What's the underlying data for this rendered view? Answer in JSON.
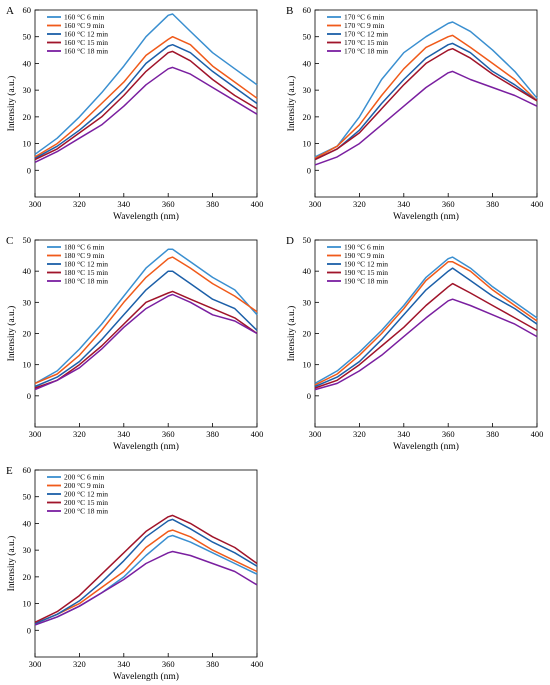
{
  "chart_data": [
    {
      "type": "line",
      "panel": "A",
      "xlabel": "Wavelength (nm)",
      "ylabel": "Intensity (a.u.)",
      "xlim": [
        300,
        400
      ],
      "ylim": [
        -10,
        60
      ],
      "xticks": [
        300,
        320,
        340,
        360,
        380,
        400
      ],
      "yticks": [
        0,
        10,
        20,
        30,
        40,
        50,
        60
      ],
      "grid": false,
      "legend_position": "top-left",
      "x": [
        300,
        310,
        320,
        330,
        340,
        350,
        360,
        362,
        370,
        380,
        390,
        400
      ],
      "series": [
        {
          "name": "160 °C  6 min",
          "color": "#3a8fd0",
          "values": [
            6,
            12,
            20,
            29,
            39,
            50,
            58,
            58.5,
            52,
            44,
            38,
            32
          ]
        },
        {
          "name": "160 °C  9 min",
          "color": "#f05a1a",
          "values": [
            5,
            10,
            17,
            25,
            33,
            43,
            49,
            50,
            47,
            39,
            33,
            27
          ]
        },
        {
          "name": "160 °C  12 min",
          "color": "#1c5fa8",
          "values": [
            4.5,
            9,
            15,
            22,
            30,
            40,
            46.5,
            47,
            44,
            37,
            31,
            25
          ]
        },
        {
          "name": "160 °C  15 min",
          "color": "#a0142a",
          "values": [
            4,
            8,
            14,
            20,
            28,
            37,
            44,
            44.5,
            41,
            34,
            28,
            23
          ]
        },
        {
          "name": "160 °C  18 min",
          "color": "#7a1fa0",
          "values": [
            3,
            7,
            12,
            17,
            24,
            32,
            38,
            38.5,
            36,
            31,
            26,
            21
          ]
        }
      ]
    },
    {
      "type": "line",
      "panel": "B",
      "xlabel": "Wavelength (nm)",
      "ylabel": "Intensity (a.u.)",
      "xlim": [
        300,
        400
      ],
      "ylim": [
        -10,
        60
      ],
      "xticks": [
        300,
        320,
        340,
        360,
        380,
        400
      ],
      "yticks": [
        0,
        10,
        20,
        30,
        40,
        50,
        60
      ],
      "grid": false,
      "legend_position": "top-left",
      "x": [
        300,
        310,
        320,
        330,
        340,
        350,
        360,
        362,
        370,
        380,
        390,
        400
      ],
      "series": [
        {
          "name": "170 °C  6 min",
          "color": "#3a8fd0",
          "values": [
            5,
            9,
            20,
            34,
            44,
            50,
            55,
            55.5,
            52,
            45,
            37,
            27
          ]
        },
        {
          "name": "170 °C  9 min",
          "color": "#f05a1a",
          "values": [
            4.5,
            9,
            17,
            28,
            38,
            46,
            50,
            50.5,
            46,
            40,
            34,
            26
          ]
        },
        {
          "name": "170 °C  12 min",
          "color": "#1c5fa8",
          "values": [
            4,
            8,
            15,
            25,
            34,
            42,
            47,
            47.5,
            44,
            37,
            32,
            26
          ]
        },
        {
          "name": "170 °C  15 min",
          "color": "#a0142a",
          "values": [
            4,
            8,
            14,
            23,
            32,
            40,
            45,
            45.5,
            42,
            36,
            31,
            26
          ]
        },
        {
          "name": "170 °C  18 min",
          "color": "#7a1fa0",
          "values": [
            2,
            5,
            10,
            17,
            24,
            31,
            36.5,
            37,
            34,
            31,
            28,
            24
          ]
        }
      ]
    },
    {
      "type": "line",
      "panel": "C",
      "xlabel": "Wavelength (nm)",
      "ylabel": "Intensity (a.u.)",
      "xlim": [
        300,
        400
      ],
      "ylim": [
        -10,
        50
      ],
      "xticks": [
        300,
        320,
        340,
        360,
        380,
        400
      ],
      "yticks": [
        0,
        10,
        20,
        30,
        40,
        50
      ],
      "grid": false,
      "legend_position": "top-left",
      "x": [
        300,
        310,
        320,
        330,
        340,
        350,
        360,
        362,
        370,
        380,
        390,
        400
      ],
      "series": [
        {
          "name": "180 °C  6 min",
          "color": "#3a8fd0",
          "values": [
            4,
            8,
            15,
            23,
            32,
            41,
            47,
            47,
            43,
            38,
            34,
            26
          ]
        },
        {
          "name": "180 °C  9 min",
          "color": "#f05a1a",
          "values": [
            4,
            7,
            13,
            21,
            30,
            38,
            44,
            44.5,
            41,
            36,
            32,
            27
          ]
        },
        {
          "name": "180 °C  12 min",
          "color": "#1c5fa8",
          "values": [
            3,
            6,
            11,
            18,
            26,
            34,
            40,
            40,
            36,
            31,
            28,
            21
          ]
        },
        {
          "name": "180 °C  15 min",
          "color": "#a0142a",
          "values": [
            2.5,
            5,
            10,
            16,
            23,
            30,
            33,
            33.5,
            31,
            28,
            25,
            20
          ]
        },
        {
          "name": "180 °C  18 min",
          "color": "#7a1fa0",
          "values": [
            2,
            5,
            9,
            15,
            22,
            28,
            32,
            32.5,
            30,
            26,
            24,
            20
          ]
        }
      ]
    },
    {
      "type": "line",
      "panel": "D",
      "xlabel": "Wavelength (nm)",
      "ylabel": "Intensity (a.u.)",
      "xlim": [
        300,
        400
      ],
      "ylim": [
        -10,
        50
      ],
      "xticks": [
        300,
        320,
        340,
        360,
        380,
        400
      ],
      "yticks": [
        0,
        10,
        20,
        30,
        40,
        50
      ],
      "grid": false,
      "legend_position": "top-left",
      "x": [
        300,
        310,
        320,
        330,
        340,
        350,
        360,
        362,
        370,
        380,
        390,
        400
      ],
      "series": [
        {
          "name": "190 °C  6 min",
          "color": "#3a8fd0",
          "values": [
            4,
            8,
            14,
            21,
            29,
            38,
            44,
            44.5,
            41,
            35,
            30,
            25
          ]
        },
        {
          "name": "190 °C  9 min",
          "color": "#f05a1a",
          "values": [
            3.5,
            7,
            13,
            20,
            28,
            37,
            43,
            43,
            40,
            34,
            29,
            24
          ]
        },
        {
          "name": "190 °C  12 min",
          "color": "#1c5fa8",
          "values": [
            3,
            6,
            11,
            18,
            26,
            34,
            40,
            41,
            37,
            32,
            28,
            23
          ]
        },
        {
          "name": "190 °C  15 min",
          "color": "#a0142a",
          "values": [
            2.5,
            5,
            10,
            16,
            22,
            29,
            35,
            36,
            33,
            29,
            25,
            21
          ]
        },
        {
          "name": "190 °C  18 min",
          "color": "#7a1fa0",
          "values": [
            2,
            4,
            8,
            13,
            19,
            25,
            30.5,
            31,
            29,
            26,
            23,
            19
          ]
        }
      ]
    },
    {
      "type": "line",
      "panel": "E",
      "xlabel": "Wavelength (nm)",
      "ylabel": "Intensity (a.u.)",
      "xlim": [
        300,
        400
      ],
      "ylim": [
        -10,
        60
      ],
      "xticks": [
        300,
        320,
        340,
        360,
        380,
        400
      ],
      "yticks": [
        0,
        10,
        20,
        30,
        40,
        50,
        60
      ],
      "grid": false,
      "legend_position": "top-left",
      "x": [
        300,
        310,
        320,
        330,
        340,
        350,
        360,
        362,
        370,
        380,
        390,
        400
      ],
      "series": [
        {
          "name": "200 °C  6 min",
          "color": "#3a8fd0",
          "values": [
            2,
            5,
            9,
            14,
            20,
            28,
            35,
            35.5,
            33,
            29,
            25,
            21
          ]
        },
        {
          "name": "200 °C  9 min",
          "color": "#f05a1a",
          "values": [
            2.5,
            6,
            10,
            16,
            22,
            31,
            37,
            37.5,
            35,
            30,
            26,
            22
          ]
        },
        {
          "name": "200 °C  12 min",
          "color": "#1c5fa8",
          "values": [
            2.5,
            6,
            11,
            18,
            26,
            35,
            41,
            41.5,
            38,
            33,
            29,
            24
          ]
        },
        {
          "name": "200 °C  15 min",
          "color": "#a0142a",
          "values": [
            3,
            7,
            13,
            21,
            29,
            37,
            42.5,
            43,
            40,
            35,
            31,
            25
          ]
        },
        {
          "name": "200 °C  18 min",
          "color": "#7a1fa0",
          "values": [
            2,
            5,
            9,
            14,
            19,
            25,
            29,
            29.5,
            28,
            25,
            22,
            17
          ]
        }
      ]
    }
  ]
}
